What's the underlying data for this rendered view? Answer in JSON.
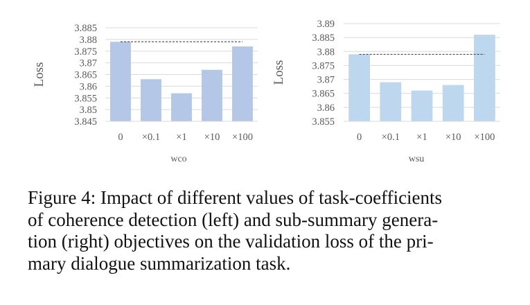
{
  "chart_data": [
    {
      "type": "bar",
      "categories": [
        "0",
        "×0.1",
        "×1",
        "×10",
        "×100"
      ],
      "values": [
        3.879,
        3.863,
        3.857,
        3.867,
        3.877
      ],
      "yticks": [
        "3.845",
        "3.85",
        "3.855",
        "3.86",
        "3.865",
        "3.87",
        "3.875",
        "3.88",
        "3.885"
      ],
      "ylim": [
        3.845,
        3.885
      ],
      "ylabel": "Loss",
      "xlabel": "wco",
      "baseline": 3.879,
      "color": "#b4c7e7",
      "grid": true
    },
    {
      "type": "bar",
      "categories": [
        "0",
        "×0.1",
        "×1",
        "×10",
        "×100"
      ],
      "values": [
        3.879,
        3.869,
        3.866,
        3.868,
        3.886
      ],
      "yticks": [
        "3.855",
        "3.86",
        "3.865",
        "3.87",
        "3.875",
        "3.88",
        "3.885",
        "3.89"
      ],
      "ylim": [
        3.855,
        3.89
      ],
      "ylabel": "Loss",
      "xlabel": "wsu",
      "baseline": 3.879,
      "color": "#bdd7ee",
      "grid": true
    }
  ],
  "caption": {
    "lines": [
      "Figure 4: Impact of different values of task-coefficients",
      "of coherence detection (left) and sub-summary genera-",
      "tion (right) objectives on the validation loss of the pri-",
      "mary dialogue summarization task."
    ]
  }
}
